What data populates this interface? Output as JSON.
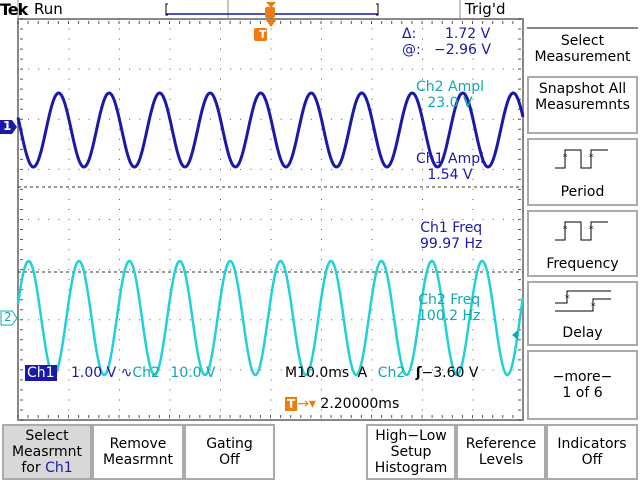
{
  "header": {
    "brand": "Tek",
    "state": "Run",
    "trigger_status": "Trig'd"
  },
  "cursor": {
    "delta_label": "Δ:",
    "delta_value": "1.72 V",
    "at_label": "@:",
    "at_value": "−2.96 V"
  },
  "measurements": [
    {
      "label": "Ch2 Ampl",
      "value": "23.0 V",
      "channel": "ch2"
    },
    {
      "label": "Ch1 Ampl",
      "value": "1.54 V",
      "channel": "ch1"
    },
    {
      "label": "Ch1 Freq",
      "value": "99.97 Hz",
      "channel": "ch1"
    },
    {
      "label": "Ch2 Freq",
      "value": "100.2 Hz",
      "channel": "ch2"
    }
  ],
  "status": {
    "ch1": "Ch1",
    "ch1_scale": "1.00 V",
    "ch1_bw": "∿",
    "ch2": "Ch2",
    "ch2_scale": "10.0 V",
    "timebase": "M10.0ms",
    "trigger_mode": "A",
    "trigger_source": "Ch2",
    "trigger_slope": "rising",
    "trigger_level": "−3.60 V",
    "trigger_position": "2.20000ms"
  },
  "markers": {
    "ch1": "1",
    "ch2": "2",
    "trigger": "T"
  },
  "side_menu": {
    "title": "Select Measurement",
    "buttons": [
      {
        "label": "Snapshot All Measuremnts"
      },
      {
        "label": "Period",
        "icon": "period-waveform-icon"
      },
      {
        "label": "Frequency",
        "icon": "frequency-waveform-icon"
      },
      {
        "label": "Delay",
        "icon": "delay-waveform-icon"
      },
      {
        "label": "−more−",
        "sub": "1 of 6"
      }
    ]
  },
  "bottom_menu": [
    {
      "line1": "Select",
      "line2": "Measrmnt",
      "line3": "for",
      "line3b": "Ch1"
    },
    {
      "line1": "Remove",
      "line2": "Measrmnt"
    },
    {
      "line1": "Gating",
      "line2": "Off"
    },
    {
      "line1": "High−Low",
      "line2": "Setup",
      "line3": "Histogram"
    },
    {
      "line1": "Reference",
      "line2": "Levels"
    },
    {
      "line1": "Indicators",
      "line2": "Off"
    }
  ],
  "colors": {
    "ch1": "#1a1aa8",
    "ch2": "#10c8d4",
    "trigger": "#f07c10",
    "selected_button": "#d8d8d8"
  },
  "waveforms": {
    "ch1_frequency_hz": 99.97,
    "ch2_frequency_hz": 100.2,
    "timebase_ms_per_div": 10
  }
}
